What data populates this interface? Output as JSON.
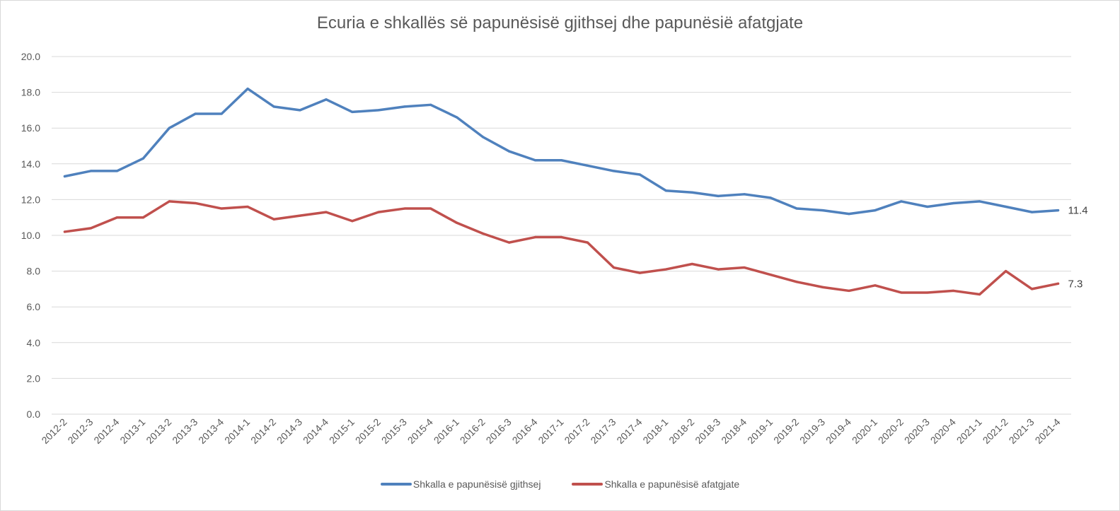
{
  "chart_data": {
    "type": "line",
    "title": "Ecuria e shkallës së papunësisë gjithsej dhe papunësië afatgjate",
    "xlabel": "",
    "ylabel": "",
    "ylim": [
      0,
      20
    ],
    "yticks": [
      "0.0",
      "2.0",
      "4.0",
      "6.0",
      "8.0",
      "10.0",
      "12.0",
      "14.0",
      "16.0",
      "18.0",
      "20.0"
    ],
    "grid": true,
    "legend_position": "bottom",
    "categories": [
      "2012-2",
      "2012-3",
      "2012-4",
      "2013-1",
      "2013-2",
      "2013-3",
      "2013-4",
      "2014-1",
      "2014-2",
      "2014-3",
      "2014-4",
      "2015-1",
      "2015-2",
      "2015-3",
      "2015-4",
      "2016-1",
      "2016-2",
      "2016-3",
      "2016-4",
      "2017-1",
      "2017-2",
      "2017-3",
      "2017-4",
      "2018-1",
      "2018-2",
      "2018-3",
      "2018-4",
      "2019-1",
      "2019-2",
      "2019-3",
      "2019-4",
      "2020-1",
      "2020-2",
      "2020-3",
      "2020-4",
      "2021-1",
      "2021-2",
      "2021-3",
      "2021-4"
    ],
    "series": [
      {
        "name": "Shkalla e papunësisë gjithsej",
        "color": "#4F81BD",
        "values": [
          13.3,
          13.6,
          13.6,
          14.3,
          16.0,
          16.8,
          16.8,
          18.2,
          17.2,
          17.0,
          17.6,
          16.9,
          17.0,
          17.2,
          17.3,
          16.6,
          15.5,
          14.7,
          14.2,
          14.2,
          13.9,
          13.6,
          13.4,
          12.5,
          12.4,
          12.2,
          12.3,
          12.1,
          11.5,
          11.4,
          11.2,
          11.4,
          11.9,
          11.6,
          11.8,
          11.9,
          11.6,
          11.3,
          11.4
        ],
        "end_label": "11.4"
      },
      {
        "name": "Shkalla e papunësisë afatgjate",
        "color": "#C0504D",
        "values": [
          10.2,
          10.4,
          11.0,
          11.0,
          11.9,
          11.8,
          11.5,
          11.6,
          10.9,
          11.1,
          11.3,
          10.8,
          11.3,
          11.5,
          11.5,
          10.7,
          10.1,
          9.6,
          9.9,
          9.9,
          9.6,
          8.2,
          7.9,
          8.1,
          8.4,
          8.1,
          8.2,
          7.8,
          7.4,
          7.1,
          6.9,
          7.2,
          6.8,
          6.8,
          6.9,
          6.7,
          8.0,
          7.0,
          7.3
        ],
        "end_label": "7.3"
      }
    ]
  }
}
